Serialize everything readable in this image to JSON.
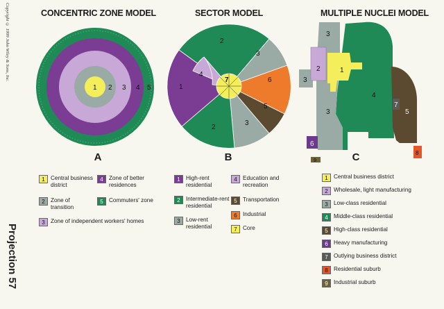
{
  "copyright": "Copyright © 1999 John Wiley & Sons, Inc.",
  "projection_label": "Projection 57",
  "colors": {
    "cbd_yellow": "#f3ee5a",
    "better_purple": "#7a3d93",
    "transition_gray": "#9aaba5",
    "commuter_green": "#1f8a55",
    "independent_lavender": "#c8a8d6",
    "transport_brown": "#5c4a30",
    "industrial_orange": "#ee7b2c",
    "heavy_mfg_purple": "#6b3a8c",
    "outlying_dark": "#5a5a58",
    "resid_suburb_orange": "#e2562a",
    "industrial_suburb_olive": "#6e6238"
  },
  "concentric": {
    "title": "CONCENTRIC ZONE MODEL",
    "letter": "A",
    "ring_labels": [
      "1",
      "2",
      "3",
      "4",
      "5"
    ],
    "legend": [
      {
        "num": "1",
        "label": "Central business district",
        "color": "#f3ee5a"
      },
      {
        "num": "4",
        "label": "Zone of better residences",
        "color": "#7a3d93"
      },
      {
        "num": "2",
        "label": "Zone of transition",
        "color": "#9aaba5"
      },
      {
        "num": "5",
        "label": "Commuters' zone",
        "color": "#1f8a55"
      },
      {
        "num": "3",
        "label": "Zone of independent workers' homes",
        "color": "#c8a8d6"
      }
    ]
  },
  "sector": {
    "title": "SECTOR  MODEL",
    "letter": "B",
    "legend": [
      {
        "num": "1",
        "label": "High-rent residential",
        "color": "#7a3d93"
      },
      {
        "num": "4",
        "label": "Education and recreation",
        "color": "#c8a8d6"
      },
      {
        "num": "2",
        "label": "Intermediate-rent residential",
        "color": "#1f8a55"
      },
      {
        "num": "5",
        "label": "Transportation",
        "color": "#5c4a30"
      },
      {
        "num": "6",
        "label": "Industrial",
        "color": "#ee7b2c"
      },
      {
        "num": "3",
        "label": "Low-rent residential",
        "color": "#9aaba5"
      },
      {
        "num": "7",
        "label": "Core",
        "color": "#f3ee5a"
      }
    ]
  },
  "nuclei": {
    "title": "MULTIPLE NUCLEI MODEL",
    "letter": "C",
    "legend": [
      {
        "num": "1",
        "label": "Central business district",
        "color": "#f3ee5a"
      },
      {
        "num": "2",
        "label": "Wholesale, light manufacturing",
        "color": "#c8a8d6"
      },
      {
        "num": "3",
        "label": "Low-class residential",
        "color": "#9aaba5"
      },
      {
        "num": "4",
        "label": "Middle-class residential",
        "color": "#1f8a55"
      },
      {
        "num": "5",
        "label": "High-class residential",
        "color": "#5c4a30"
      },
      {
        "num": "6",
        "label": "Heavy manufacturing",
        "color": "#6b3a8c"
      },
      {
        "num": "7",
        "label": "Outlying business district",
        "color": "#5a5a58"
      },
      {
        "num": "8",
        "label": "Residential suburb",
        "color": "#e2562a"
      },
      {
        "num": "9",
        "label": "Industrial suburb",
        "color": "#6e6238"
      }
    ]
  }
}
